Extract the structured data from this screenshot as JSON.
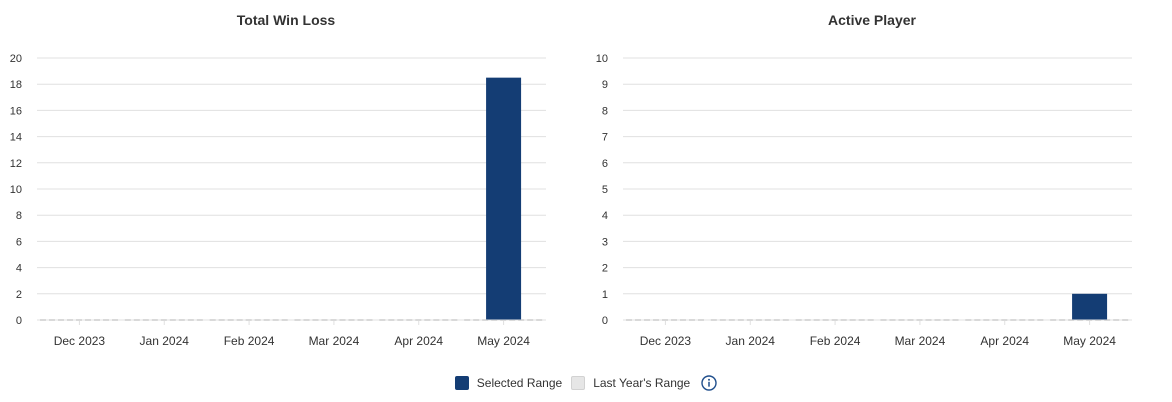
{
  "colors": {
    "selected": "#143d74",
    "last_year": "#e6e6e6",
    "last_year_border": "#d2d2d2",
    "grid": "#e0e0e0",
    "info_icon": "#1f4e8c"
  },
  "legend": {
    "selected_label": "Selected Range",
    "last_year_label": "Last Year's Range",
    "info_icon": "info-circle-icon"
  },
  "chart_data": [
    {
      "type": "bar",
      "title": "Total Win Loss",
      "categories": [
        "Dec 2023",
        "Jan 2024",
        "Feb 2024",
        "Mar 2024",
        "Apr 2024",
        "May 2024"
      ],
      "yticks": [
        0,
        2,
        4,
        6,
        8,
        10,
        12,
        14,
        16,
        18,
        20
      ],
      "ylim": [
        0,
        20
      ],
      "grid": true,
      "series": [
        {
          "name": "Selected Range",
          "values": [
            0,
            0,
            0,
            0,
            0,
            18.5
          ]
        },
        {
          "name": "Last Year's Range",
          "values": [
            0,
            0,
            0,
            0,
            0,
            0
          ]
        }
      ]
    },
    {
      "type": "bar",
      "title": "Active Player",
      "categories": [
        "Dec 2023",
        "Jan 2024",
        "Feb 2024",
        "Mar 2024",
        "Apr 2024",
        "May 2024"
      ],
      "yticks": [
        0,
        1,
        2,
        3,
        4,
        5,
        6,
        7,
        8,
        9,
        10
      ],
      "ylim": [
        0,
        10
      ],
      "grid": true,
      "series": [
        {
          "name": "Selected Range",
          "values": [
            0,
            0,
            0,
            0,
            0,
            1
          ]
        },
        {
          "name": "Last Year's Range",
          "values": [
            0,
            0,
            0,
            0,
            0,
            0
          ]
        }
      ]
    }
  ]
}
